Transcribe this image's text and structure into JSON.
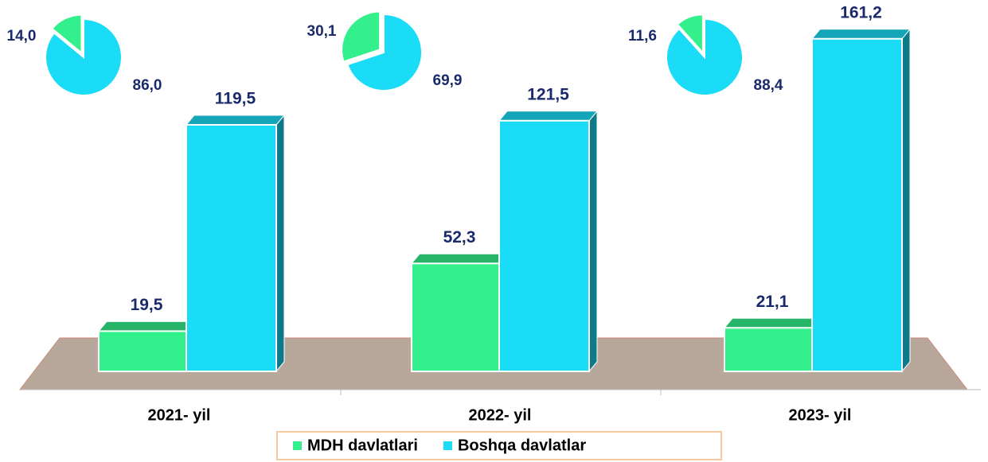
{
  "chart_data": [
    {
      "type": "bar3d",
      "categories": [
        "2021- yil",
        "2022- yil",
        "2023- yil"
      ],
      "ylim": [
        0,
        180
      ],
      "series": [
        {
          "name": "MDH davlatlari",
          "color": "#33f08c",
          "values": [
            19.5,
            52.3,
            21.1
          ],
          "value_labels": [
            "19,5",
            "52,3",
            "21,1"
          ]
        },
        {
          "name": "Boshqa davlatlar",
          "color": "#1adcf7",
          "values": [
            119.5,
            121.5,
            161.2
          ],
          "value_labels": [
            "119,5",
            "121,5",
            "161,2"
          ]
        }
      ]
    },
    {
      "type": "pie",
      "values": [
        14.0,
        86.0
      ],
      "value_labels": [
        "14,0",
        "86,0"
      ],
      "colors": [
        "#33f08c",
        "#1adcf7"
      ]
    },
    {
      "type": "pie",
      "values": [
        30.1,
        69.9
      ],
      "value_labels": [
        "30,1",
        "69,9"
      ],
      "colors": [
        "#33f08c",
        "#1adcf7"
      ]
    },
    {
      "type": "pie",
      "values": [
        11.6,
        88.4
      ],
      "value_labels": [
        "11,6",
        "88,4"
      ],
      "colors": [
        "#33f08c",
        "#1adcf7"
      ]
    }
  ]
}
